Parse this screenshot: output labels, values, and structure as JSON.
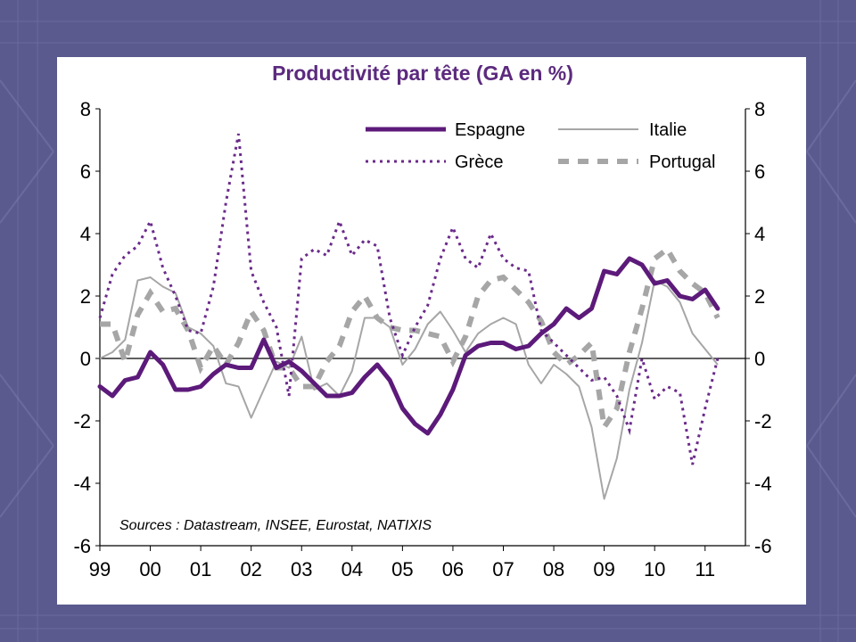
{
  "slide": {
    "background": "#5a5a8e",
    "panel": "#ffffff"
  },
  "chart_data": {
    "type": "line",
    "title": "Productivité par tête (GA en %)",
    "source": "Sources : Datastream, INSEE, Eurostat, NATIXIS",
    "xlabel": "",
    "ylabel": "",
    "x_tick_labels": [
      "99",
      "00",
      "01",
      "02",
      "03",
      "04",
      "05",
      "06",
      "07",
      "08",
      "09",
      "10",
      "11"
    ],
    "xlim": [
      1999.0,
      2011.8
    ],
    "ylim": [
      -6,
      8
    ],
    "y_ticks": [
      "8",
      "6",
      "4",
      "2",
      "0",
      "-2",
      "-4",
      "-6"
    ],
    "y_ticks_right": [
      "8",
      "6",
      "4",
      "2",
      "0",
      "-2",
      "-4",
      "-6"
    ],
    "zero_line": true,
    "legend_position": "top-right",
    "series": [
      {
        "name": "Espagne",
        "color": "#5c1a7a",
        "style": "solid-thick",
        "x": [
          1999.0,
          1999.25,
          1999.5,
          1999.75,
          2000.0,
          2000.25,
          2000.5,
          2000.75,
          2001.0,
          2001.25,
          2001.5,
          2001.75,
          2002.0,
          2002.25,
          2002.5,
          2002.75,
          2003.0,
          2003.25,
          2003.5,
          2003.75,
          2004.0,
          2004.25,
          2004.5,
          2004.75,
          2005.0,
          2005.25,
          2005.5,
          2005.75,
          2006.0,
          2006.25,
          2006.5,
          2006.75,
          2007.0,
          2007.25,
          2007.5,
          2007.75,
          2008.0,
          2008.25,
          2008.5,
          2008.75,
          2009.0,
          2009.25,
          2009.5,
          2009.75,
          2010.0,
          2010.25,
          2010.5,
          2010.75,
          2011.0,
          2011.25
        ],
        "values": [
          -0.9,
          -1.2,
          -0.7,
          -0.6,
          0.2,
          -0.2,
          -1.0,
          -1.0,
          -0.9,
          -0.5,
          -0.2,
          -0.3,
          -0.3,
          0.6,
          -0.3,
          -0.1,
          -0.4,
          -0.8,
          -1.2,
          -1.2,
          -1.1,
          -0.6,
          -0.2,
          -0.7,
          -1.6,
          -2.1,
          -2.4,
          -1.8,
          -1.0,
          0.1,
          0.4,
          0.5,
          0.5,
          0.3,
          0.4,
          0.8,
          1.1,
          1.6,
          1.3,
          1.6,
          2.8,
          2.7,
          3.2,
          3.0,
          2.4,
          2.5,
          2.0,
          1.9,
          2.2,
          1.6
        ]
      },
      {
        "name": "Italie",
        "color": "#a6a6a6",
        "style": "solid-thin",
        "x": [
          1999.0,
          1999.25,
          1999.5,
          1999.75,
          2000.0,
          2000.25,
          2000.5,
          2000.75,
          2001.0,
          2001.25,
          2001.5,
          2001.75,
          2002.0,
          2002.25,
          2002.5,
          2002.75,
          2003.0,
          2003.25,
          2003.5,
          2003.75,
          2004.0,
          2004.25,
          2004.5,
          2004.75,
          2005.0,
          2005.25,
          2005.5,
          2005.75,
          2006.0,
          2006.25,
          2006.5,
          2006.75,
          2007.0,
          2007.25,
          2007.5,
          2007.75,
          2008.0,
          2008.25,
          2008.5,
          2008.75,
          2009.0,
          2009.25,
          2009.5,
          2009.75,
          2010.0,
          2010.25,
          2010.5,
          2010.75,
          2011.0,
          2011.25
        ],
        "values": [
          0.0,
          0.2,
          0.6,
          2.5,
          2.6,
          2.3,
          2.1,
          1.0,
          0.8,
          0.4,
          -0.8,
          -0.9,
          -1.9,
          -1.0,
          -0.1,
          -0.3,
          0.7,
          -1.0,
          -0.8,
          -1.2,
          -0.4,
          1.3,
          1.3,
          1.0,
          -0.2,
          0.3,
          1.1,
          1.5,
          0.9,
          0.2,
          0.8,
          1.1,
          1.3,
          1.1,
          -0.2,
          -0.8,
          -0.2,
          -0.5,
          -0.9,
          -2.2,
          -4.5,
          -3.2,
          -1.0,
          0.5,
          2.5,
          2.3,
          1.8,
          0.8,
          0.3,
          -0.2
        ]
      },
      {
        "name": "Grèce",
        "color": "#6a2a8a",
        "style": "dotted",
        "x": [
          1999.0,
          1999.25,
          1999.5,
          1999.75,
          2000.0,
          2000.25,
          2000.5,
          2000.75,
          2001.0,
          2001.25,
          2001.5,
          2001.75,
          2002.0,
          2002.25,
          2002.5,
          2002.75,
          2003.0,
          2003.25,
          2003.5,
          2003.75,
          2004.0,
          2004.25,
          2004.5,
          2004.75,
          2005.0,
          2005.25,
          2005.5,
          2005.75,
          2006.0,
          2006.25,
          2006.5,
          2006.75,
          2007.0,
          2007.25,
          2007.5,
          2007.75,
          2008.0,
          2008.25,
          2008.5,
          2008.75,
          2009.0,
          2009.25,
          2009.5,
          2009.75,
          2010.0,
          2010.25,
          2010.5,
          2010.75,
          2011.0,
          2011.25
        ],
        "values": [
          1.3,
          2.7,
          3.3,
          3.6,
          4.4,
          2.9,
          2.0,
          0.9,
          0.8,
          2.3,
          5.0,
          7.2,
          2.8,
          1.8,
          1.0,
          -1.2,
          3.2,
          3.5,
          3.3,
          4.4,
          3.3,
          3.8,
          3.6,
          1.3,
          0.1,
          1.0,
          1.7,
          3.2,
          4.2,
          3.2,
          2.9,
          4.0,
          3.2,
          2.9,
          2.8,
          0.9,
          0.5,
          0.1,
          -0.3,
          -0.7,
          -0.6,
          -1.2,
          -2.3,
          0.0,
          -1.3,
          -0.9,
          -1.1,
          -3.4,
          -1.6,
          0.0
        ]
      },
      {
        "name": "Portugal",
        "color": "#a6a6a6",
        "style": "dashed-thick",
        "x": [
          1999.0,
          1999.25,
          1999.5,
          1999.75,
          2000.0,
          2000.25,
          2000.5,
          2000.75,
          2001.0,
          2001.25,
          2001.5,
          2001.75,
          2002.0,
          2002.25,
          2002.5,
          2002.75,
          2003.0,
          2003.25,
          2003.5,
          2003.75,
          2004.0,
          2004.25,
          2004.5,
          2004.75,
          2005.0,
          2005.25,
          2005.5,
          2005.75,
          2006.0,
          2006.25,
          2006.5,
          2006.75,
          2007.0,
          2007.25,
          2007.5,
          2007.75,
          2008.0,
          2008.25,
          2008.5,
          2008.75,
          2009.0,
          2009.25,
          2009.5,
          2009.75,
          2010.0,
          2010.25,
          2010.5,
          2010.75,
          2011.0,
          2011.25
        ],
        "values": [
          1.1,
          1.1,
          -0.1,
          1.4,
          2.1,
          1.5,
          1.6,
          0.9,
          -0.3,
          0.4,
          -0.2,
          0.5,
          1.5,
          0.9,
          -0.3,
          -0.3,
          -0.9,
          -0.9,
          -0.1,
          0.4,
          1.5,
          2.0,
          1.3,
          1.0,
          0.9,
          0.9,
          0.8,
          0.7,
          -0.1,
          0.7,
          2.0,
          2.5,
          2.6,
          2.2,
          1.8,
          1.2,
          0.2,
          -0.2,
          0.1,
          0.5,
          -2.2,
          -1.6,
          0.2,
          1.6,
          3.2,
          3.5,
          2.8,
          2.4,
          2.1,
          1.3
        ]
      }
    ]
  }
}
